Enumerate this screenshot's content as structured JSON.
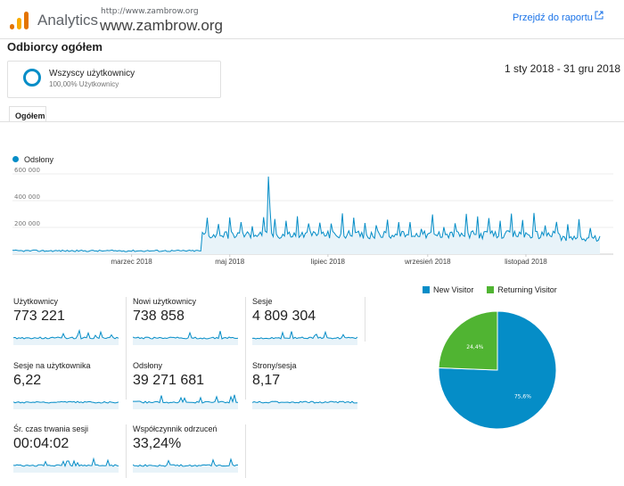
{
  "header": {
    "app_name": "Analytics",
    "url_small": "http://www.zambrow.org",
    "url_big": "www.zambrow.org",
    "report_link": "Przejdź do raportu"
  },
  "page_title": "Odbiorcy ogółem",
  "segment": {
    "name": "Wszyscy użytkownicy",
    "percent": "100,00% Użytkownicy"
  },
  "date_range": "1 sty 2018 - 31 gru 2018",
  "tabs": [
    {
      "label": "Ogółem"
    }
  ],
  "colors": {
    "accent": "#058dc7",
    "returning": "#50b432",
    "link": "#1a73e8"
  },
  "chart_data": [
    {
      "type": "line",
      "series": [
        {
          "name": "Odsłony"
        }
      ],
      "y_ticks": [
        "600 000",
        "400 000",
        "200 000"
      ],
      "ylim": [
        0,
        600000
      ],
      "x_ticks": [
        "marzec 2018",
        "maj 2018",
        "lipiec 2018",
        "wrzesień 2018",
        "listopad 2018"
      ],
      "x_tick_months": [
        2,
        4,
        6,
        8,
        10
      ],
      "x_range_days": [
        0,
        365
      ],
      "values_pattern": {
        "jan_apr_level": 25000,
        "may_dec_level": 145000,
        "peak_value": 580000,
        "peak_day": 159
      }
    },
    {
      "type": "pie",
      "legend": [
        "New Visitor",
        "Returning Visitor"
      ],
      "slices": [
        {
          "name": "New Visitor",
          "value": 75.6,
          "label": "75,6%",
          "color": "#058dc7"
        },
        {
          "name": "Returning Visitor",
          "value": 24.4,
          "label": "24,4%",
          "color": "#50b432"
        }
      ]
    }
  ],
  "metrics": [
    {
      "label": "Użytkownicy",
      "value": "773 221"
    },
    {
      "label": "Nowi użytkownicy",
      "value": "738 858"
    },
    {
      "label": "Sesje",
      "value": "4 809 304"
    },
    {
      "label": "Sesje na użytkownika",
      "value": "6,22"
    },
    {
      "label": "Odsłony",
      "value": "39 271 681"
    },
    {
      "label": "Strony/sesja",
      "value": "8,17"
    },
    {
      "label": "Śr. czas trwania sesji",
      "value": "00:04:02"
    },
    {
      "label": "Współczynnik odrzuceń",
      "value": "33,24%"
    }
  ]
}
